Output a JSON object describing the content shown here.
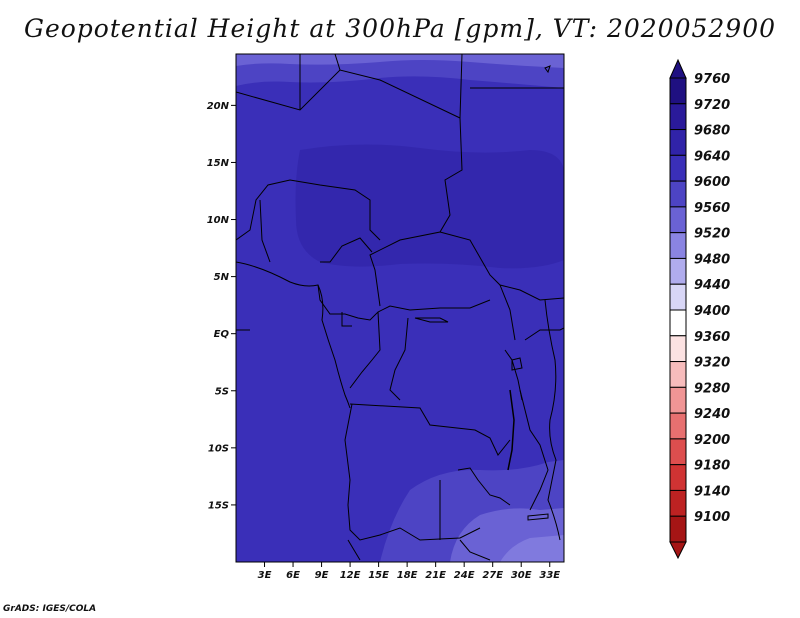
{
  "title": "Geopotential Height at 300hPa [gpm], VT: 2020052900",
  "credit": "GrADS: IGES/COLA",
  "lat_labels": [
    "20N",
    "15N",
    "10N",
    "5N",
    "EQ",
    "5S",
    "10S",
    "15S"
  ],
  "lon_labels": [
    "3E",
    "6E",
    "9E",
    "12E",
    "15E",
    "18E",
    "21E",
    "24E",
    "27E",
    "30E",
    "33E"
  ],
  "colorbar": {
    "labels": [
      "9760",
      "9720",
      "9680",
      "9640",
      "9600",
      "9560",
      "9520",
      "9480",
      "9440",
      "9400",
      "9360",
      "9320",
      "9280",
      "9240",
      "9200",
      "9180",
      "9140",
      "9100"
    ],
    "colors": [
      "#1f1081",
      "#2a1a9a",
      "#3023a8",
      "#3a2fb8",
      "#4d44c4",
      "#6a62d4",
      "#8a84e2",
      "#b0aced",
      "#d8d6f6",
      "#ffffff",
      "#fce2e2",
      "#f7bcbc",
      "#f09595",
      "#e77070",
      "#dd4e4e",
      "#d03333",
      "#bd2222",
      "#a51515"
    ]
  },
  "chart_data": {
    "type": "heatmap",
    "title": "Geopotential Height at 300hPa [gpm], VT: 2020052900",
    "variable": "Geopotential Height at 300hPa",
    "units": "gpm",
    "valid_time": "2020052900",
    "x_ticks": [
      "3E",
      "6E",
      "9E",
      "12E",
      "15E",
      "18E",
      "21E",
      "24E",
      "27E",
      "30E",
      "33E"
    ],
    "y_ticks": [
      "20N",
      "15N",
      "10N",
      "5N",
      "EQ",
      "5S",
      "10S",
      "15S"
    ],
    "xlim": [
      0,
      34.5
    ],
    "ylim": [
      -20,
      24.5
    ],
    "color_levels": [
      9100,
      9140,
      9180,
      9200,
      9240,
      9280,
      9320,
      9360,
      9400,
      9440,
      9480,
      9520,
      9560,
      9600,
      9640,
      9680,
      9720,
      9760
    ],
    "field_range": [
      9600,
      9720
    ]
  }
}
